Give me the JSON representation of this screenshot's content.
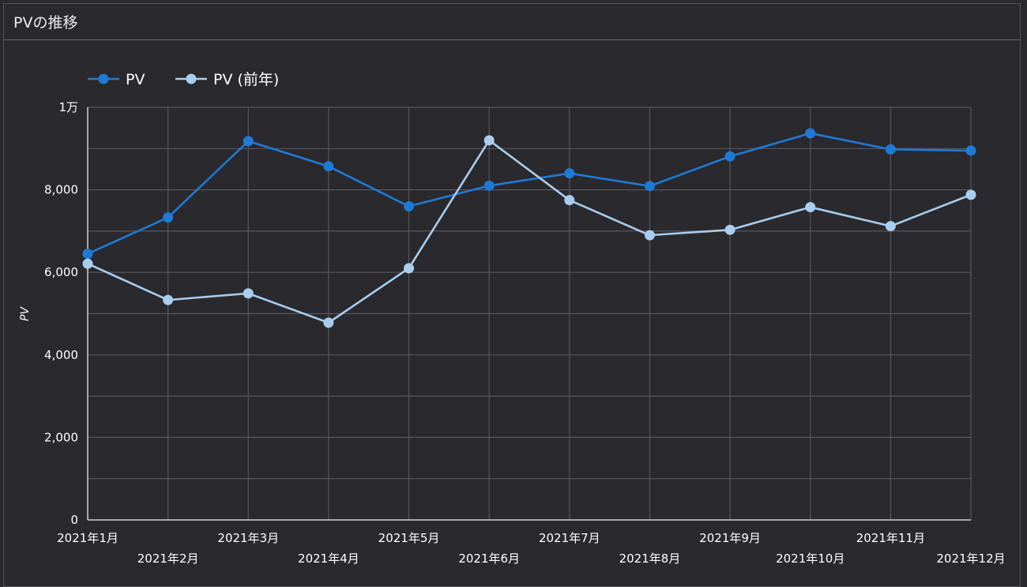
{
  "panel": {
    "title": "PVの推移"
  },
  "chart_data": {
    "type": "line",
    "categories": [
      "2021年1月",
      "2021年2月",
      "2021年3月",
      "2021年4月",
      "2021年5月",
      "2021年6月",
      "2021年7月",
      "2021年8月",
      "2021年9月",
      "2021年10月",
      "2021年11月",
      "2021年12月"
    ],
    "series": [
      {
        "name": "PV",
        "color": "#1f7ad6",
        "values": [
          6450,
          7330,
          9180,
          8570,
          7600,
          8100,
          8400,
          8090,
          8810,
          9370,
          8980,
          8950
        ]
      },
      {
        "name": "PV (前年)",
        "color": "#a9cdee",
        "values": [
          6210,
          5330,
          5490,
          4780,
          6100,
          9200,
          7750,
          6900,
          7030,
          7580,
          7120,
          7880
        ]
      }
    ],
    "ylabel": "PV",
    "ylim": [
      0,
      10000
    ],
    "yticks": [
      {
        "value": 0,
        "label": "0"
      },
      {
        "value": 2000,
        "label": "2,000"
      },
      {
        "value": 4000,
        "label": "4,000"
      },
      {
        "value": 6000,
        "label": "6,000"
      },
      {
        "value": 8000,
        "label": "8,000"
      },
      {
        "value": 10000,
        "label": "1万"
      }
    ],
    "ygrid_step": 1000,
    "grid": true,
    "legend_position": "top-left"
  }
}
